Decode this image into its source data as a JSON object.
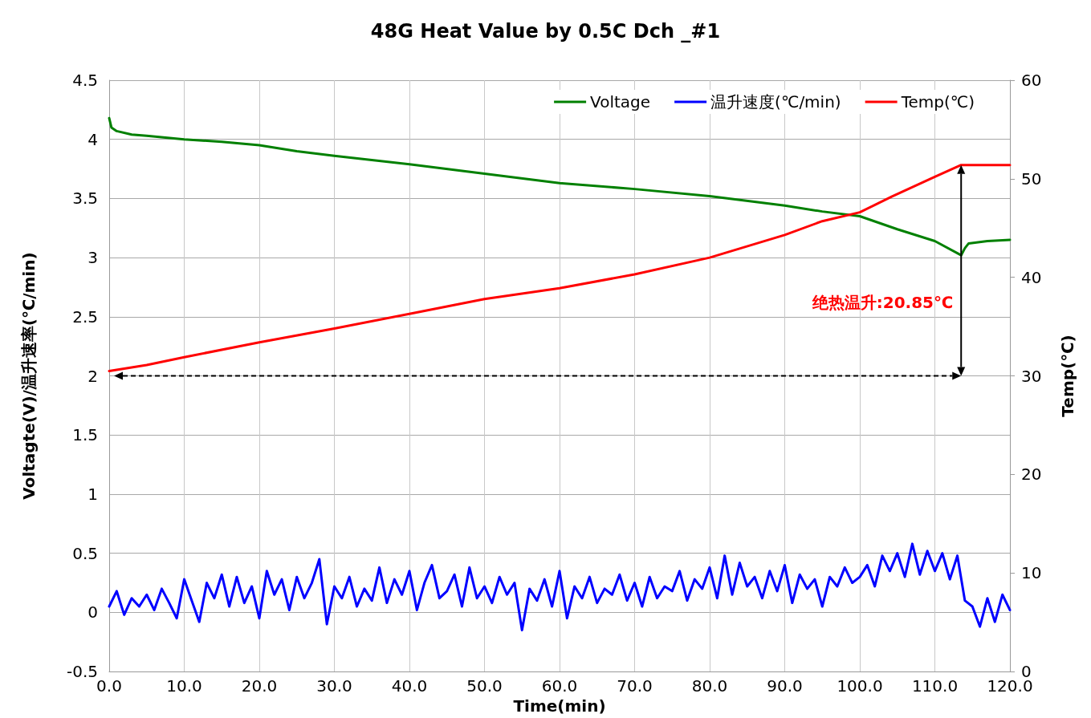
{
  "chart_data": {
    "type": "line",
    "title": "48G Heat Value by 0.5C Dch _#1",
    "xlabel": "Time(min)",
    "ylabel": "Voltagte(V)/温升速率(℃/min)",
    "y2label": "Temp(℃)",
    "xlim": [
      0,
      120
    ],
    "xticks": [
      {
        "value": 0,
        "label": "0.0"
      },
      {
        "value": 10,
        "label": "10.0"
      },
      {
        "value": 20,
        "label": "20.0"
      },
      {
        "value": 30,
        "label": "30.0"
      },
      {
        "value": 40,
        "label": "40.0"
      },
      {
        "value": 50,
        "label": "50.0"
      },
      {
        "value": 60,
        "label": "60.0"
      },
      {
        "value": 70,
        "label": "70.0"
      },
      {
        "value": 80,
        "label": "80.0"
      },
      {
        "value": 90,
        "label": "90.0"
      },
      {
        "value": 100,
        "label": "100.0"
      },
      {
        "value": 110,
        "label": "110.0"
      },
      {
        "value": 120,
        "label": "120.0"
      }
    ],
    "ylim": [
      -0.5,
      4.5
    ],
    "yticks": [
      -0.5,
      0,
      0.5,
      1,
      1.5,
      2,
      2.5,
      3,
      3.5,
      4,
      4.5
    ],
    "y2lim": [
      0,
      60
    ],
    "y2ticks": [
      0,
      10,
      20,
      30,
      40,
      50,
      60
    ],
    "grid": true,
    "legend": "top right",
    "marker": "none",
    "line_style": "solid",
    "annotations": [
      "绝热温升:20.85℃"
    ],
    "ref_lines": [
      {
        "axis": "y2",
        "value": 30,
        "color": "#000000",
        "line_style": "dashed"
      }
    ],
    "series": [
      {
        "name": "Voltage",
        "color": "#008000",
        "x": [
          0,
          0.3,
          1,
          3,
          5,
          10,
          15,
          20,
          25,
          30,
          40,
          50,
          60,
          70,
          80,
          90,
          95,
          100,
          105,
          110,
          113.5,
          114,
          114.5,
          117,
          120
        ],
        "values": [
          4.18,
          4.1,
          4.07,
          4.04,
          4.03,
          4.0,
          3.98,
          3.95,
          3.9,
          3.86,
          3.79,
          3.71,
          3.63,
          3.58,
          3.52,
          3.44,
          3.39,
          3.35,
          3.24,
          3.14,
          3.02,
          3.08,
          3.12,
          3.14,
          3.15
        ]
      },
      {
        "name": "温升速度(℃/min)",
        "color": "#0000ff",
        "x": [
          0,
          1,
          2,
          3,
          4,
          5,
          6,
          7,
          8,
          9,
          10,
          11,
          12,
          13,
          14,
          15,
          16,
          17,
          18,
          19,
          20,
          21,
          22,
          23,
          24,
          25,
          26,
          27,
          28,
          29,
          30,
          31,
          32,
          33,
          34,
          35,
          36,
          37,
          38,
          39,
          40,
          41,
          42,
          43,
          44,
          45,
          46,
          47,
          48,
          49,
          50,
          51,
          52,
          53,
          54,
          55,
          56,
          57,
          58,
          59,
          60,
          61,
          62,
          63,
          64,
          65,
          66,
          67,
          68,
          69,
          70,
          71,
          72,
          73,
          74,
          75,
          76,
          77,
          78,
          79,
          80,
          81,
          82,
          83,
          84,
          85,
          86,
          87,
          88,
          89,
          90,
          91,
          92,
          93,
          94,
          95,
          96,
          97,
          98,
          99,
          100,
          101,
          102,
          103,
          104,
          105,
          106,
          107,
          108,
          109,
          110,
          111,
          112,
          113,
          114,
          115,
          116,
          117,
          118,
          119,
          120
        ],
        "values": [
          0.05,
          0.18,
          -0.02,
          0.12,
          0.05,
          0.15,
          0.02,
          0.2,
          0.08,
          -0.05,
          0.28,
          0.1,
          -0.08,
          0.25,
          0.12,
          0.32,
          0.05,
          0.3,
          0.08,
          0.22,
          -0.05,
          0.35,
          0.15,
          0.28,
          0.02,
          0.3,
          0.12,
          0.25,
          0.45,
          -0.1,
          0.22,
          0.12,
          0.3,
          0.05,
          0.2,
          0.1,
          0.38,
          0.08,
          0.28,
          0.15,
          0.35,
          0.02,
          0.25,
          0.4,
          0.12,
          0.18,
          0.32,
          0.05,
          0.38,
          0.12,
          0.22,
          0.08,
          0.3,
          0.15,
          0.25,
          -0.15,
          0.2,
          0.1,
          0.28,
          0.05,
          0.35,
          -0.05,
          0.22,
          0.12,
          0.3,
          0.08,
          0.2,
          0.15,
          0.32,
          0.1,
          0.25,
          0.05,
          0.3,
          0.12,
          0.22,
          0.18,
          0.35,
          0.1,
          0.28,
          0.2,
          0.38,
          0.12,
          0.48,
          0.15,
          0.42,
          0.22,
          0.3,
          0.12,
          0.35,
          0.18,
          0.4,
          0.08,
          0.32,
          0.2,
          0.28,
          0.05,
          0.3,
          0.22,
          0.38,
          0.25,
          0.3,
          0.4,
          0.22,
          0.48,
          0.35,
          0.5,
          0.3,
          0.58,
          0.32,
          0.52,
          0.35,
          0.5,
          0.28,
          0.48,
          0.1,
          0.05,
          -0.12,
          0.12,
          -0.08,
          0.15,
          0.02
        ]
      },
      {
        "name": "Temp(℃)",
        "color": "#ff0000",
        "axis": "y2",
        "x": [
          0,
          5,
          10,
          20,
          30,
          40,
          50,
          60,
          70,
          80,
          90,
          95,
          100,
          104.3,
          110,
          113.5,
          120
        ],
        "values": [
          30.5,
          31.1,
          31.9,
          33.4,
          34.8,
          36.3,
          37.8,
          38.9,
          40.3,
          42.0,
          44.3,
          45.7,
          46.6,
          48.2,
          50.2,
          51.4,
          51.4
        ]
      }
    ]
  }
}
